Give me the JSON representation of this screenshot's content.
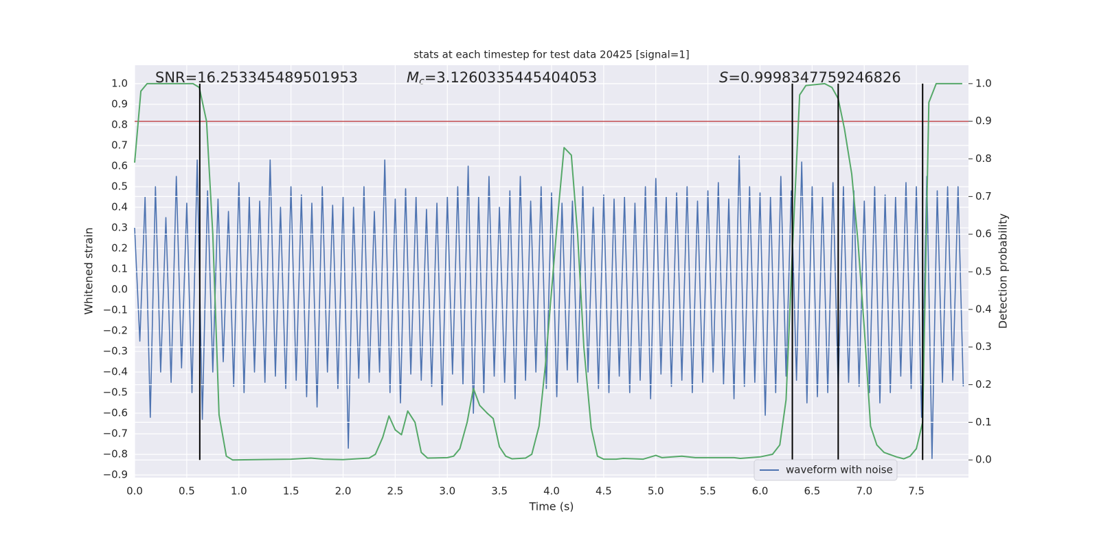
{
  "chart_data": {
    "type": "line",
    "title": "stats at each timestep for test data 20425 [signal=1]",
    "xlabel": "Time (s)",
    "ylabel": "Whitened strain",
    "y2label": "Detection probability",
    "annotations": [
      {
        "text": "SNR=16.253345489501953"
      },
      {
        "symbol": "M",
        "sub": "c",
        "text": "=3.1260335445404053"
      },
      {
        "symbol": "S",
        "text": "=0.9998347759246826"
      }
    ],
    "xlim": [
      0,
      8
    ],
    "ylim": [
      -0.913,
      1.09
    ],
    "y2lim": [
      -0.047,
      1.049
    ],
    "xticks": [
      {
        "value": 0,
        "label": "0.0"
      },
      0.5,
      {
        "value": 1,
        "label": "1.0"
      },
      1.5,
      {
        "value": 2,
        "label": "2.0"
      },
      2.5,
      {
        "value": 3,
        "label": "3.0"
      },
      3.5,
      {
        "value": 4,
        "label": "4.0"
      },
      4.5,
      {
        "value": 5,
        "label": "5.0"
      },
      5.5,
      {
        "value": 6,
        "label": "6.0"
      },
      6.5,
      {
        "value": 7,
        "label": "7.0"
      },
      7.5
    ],
    "yticks": [
      {
        "value": -0.9,
        "label": "−0.9"
      },
      {
        "value": -0.8,
        "label": "−0.8"
      },
      {
        "value": -0.7,
        "label": "−0.7"
      },
      {
        "value": -0.6,
        "label": "−0.6"
      },
      {
        "value": -0.5,
        "label": "−0.5"
      },
      {
        "value": -0.4,
        "label": "−0.4"
      },
      {
        "value": -0.3,
        "label": "−0.3"
      },
      {
        "value": -0.2,
        "label": "−0.2"
      },
      {
        "value": -0.1,
        "label": "−0.1"
      },
      {
        "value": 0,
        "label": "0.0"
      },
      0.1,
      0.2,
      0.3,
      0.4,
      0.5,
      0.6,
      0.7,
      0.8,
      0.9,
      {
        "value": 1,
        "label": "1.0"
      }
    ],
    "y2ticks": [
      {
        "value": 0,
        "label": "0.0"
      },
      0.1,
      0.2,
      0.3,
      0.4,
      0.5,
      0.6,
      0.7,
      0.8,
      0.9,
      {
        "value": 1,
        "label": "1.0"
      }
    ],
    "grid": true,
    "legend": "lower right",
    "series": [
      {
        "name": "waveform with noise",
        "color": "#4c72b0",
        "x": [
          0,
          0.05,
          0.1,
          0.15,
          0.2,
          0.25,
          0.3,
          0.35,
          0.4,
          0.45,
          0.5,
          0.55,
          0.6,
          0.65,
          0.7,
          0.75,
          0.8,
          0.85,
          0.9,
          0.95,
          1,
          1.05,
          1.1,
          1.15,
          1.2,
          1.25,
          1.3,
          1.35,
          1.4,
          1.45,
          1.5,
          1.55,
          1.6,
          1.65,
          1.7,
          1.75,
          1.8,
          1.85,
          1.9,
          1.95,
          2,
          2.05,
          2.1,
          2.15,
          2.2,
          2.25,
          2.3,
          2.35,
          2.4,
          2.45,
          2.5,
          2.55,
          2.6,
          2.65,
          2.7,
          2.75,
          2.8,
          2.85,
          2.9,
          2.95,
          3,
          3.05,
          3.1,
          3.15,
          3.2,
          3.25,
          3.3,
          3.35,
          3.4,
          3.45,
          3.5,
          3.55,
          3.6,
          3.65,
          3.7,
          3.75,
          3.8,
          3.85,
          3.9,
          3.95,
          4,
          4.05,
          4.1,
          4.15,
          4.2,
          4.25,
          4.3,
          4.35,
          4.4,
          4.45,
          4.5,
          4.55,
          4.6,
          4.65,
          4.7,
          4.75,
          4.8,
          4.85,
          4.9,
          4.95,
          5,
          5.05,
          5.1,
          5.15,
          5.2,
          5.25,
          5.3,
          5.35,
          5.4,
          5.45,
          5.5,
          5.55,
          5.6,
          5.65,
          5.7,
          5.75,
          5.8,
          5.85,
          5.9,
          5.95,
          6,
          6.05,
          6.1,
          6.15,
          6.2,
          6.25,
          6.3,
          6.35,
          6.4,
          6.45,
          6.5,
          6.55,
          6.6,
          6.65,
          6.7,
          6.75,
          6.8,
          6.85,
          6.9,
          6.95,
          7,
          7.05,
          7.1,
          7.15,
          7.2,
          7.25,
          7.3,
          7.35,
          7.4,
          7.45,
          7.5,
          7.55,
          7.6,
          7.65,
          7.7,
          7.75,
          7.8,
          7.85,
          7.9,
          7.95
        ],
        "values": [
          0.3,
          -0.25,
          0.45,
          -0.62,
          0.5,
          -0.4,
          0.35,
          -0.45,
          0.55,
          -0.38,
          0.42,
          -0.5,
          0.63,
          -0.63,
          0.48,
          -0.4,
          0.44,
          -0.35,
          0.38,
          -0.47,
          0.52,
          -0.5,
          0.45,
          -0.4,
          0.43,
          -0.45,
          0.63,
          -0.42,
          0.4,
          -0.48,
          0.5,
          -0.44,
          0.46,
          -0.52,
          0.42,
          -0.57,
          0.5,
          -0.4,
          0.41,
          -0.48,
          0.45,
          -0.77,
          0.4,
          -0.43,
          0.5,
          -0.45,
          0.38,
          -0.4,
          0.63,
          -0.5,
          0.44,
          -0.55,
          0.49,
          -0.41,
          0.45,
          -0.44,
          0.39,
          -0.47,
          0.42,
          -0.56,
          0.45,
          -0.41,
          0.5,
          -0.46,
          0.6,
          -0.6,
          0.45,
          -0.5,
          0.55,
          -0.42,
          0.4,
          -0.45,
          0.48,
          -0.53,
          0.55,
          -0.44,
          0.43,
          -0.4,
          0.5,
          -0.48,
          0.47,
          -0.52,
          0.42,
          -0.39,
          0.43,
          -0.45,
          0.5,
          -0.4,
          0.4,
          -0.48,
          0.46,
          -0.5,
          0.44,
          -0.42,
          0.45,
          -0.5,
          0.42,
          -0.44,
          0.5,
          -0.53,
          0.54,
          -0.41,
          0.45,
          -0.47,
          0.47,
          -0.44,
          0.5,
          -0.5,
          0.43,
          -0.45,
          0.48,
          -0.4,
          0.52,
          -0.46,
          0.44,
          -0.53,
          0.65,
          -0.47,
          0.5,
          -0.45,
          0.47,
          -0.61,
          0.45,
          -0.5,
          0.55,
          -0.42,
          0.48,
          -0.44,
          0.62,
          -0.55,
          0.5,
          -0.52,
          0.45,
          -0.5,
          0.52,
          -0.48,
          0.5,
          -0.45,
          0.48,
          -0.47,
          0.43,
          -0.5,
          0.5,
          -0.55,
          0.46,
          -0.5,
          0.45,
          -0.42,
          0.52,
          -0.48,
          0.5,
          -0.62,
          0.55,
          -0.82,
          0.48,
          -0.45,
          0.5,
          -0.44,
          0.5,
          -0.47
        ]
      },
      {
        "color": "#55a868",
        "axis": "y2",
        "x": [
          0,
          0.06,
          0.12,
          0.25,
          0.5,
          0.56,
          0.62,
          0.69,
          0.75,
          0.81,
          0.88,
          0.94,
          1.5,
          1.69,
          1.81,
          2,
          2.25,
          2.31,
          2.38,
          2.44,
          2.5,
          2.56,
          2.62,
          2.69,
          2.75,
          2.81,
          3,
          3.06,
          3.12,
          3.19,
          3.25,
          3.31,
          3.38,
          3.44,
          3.5,
          3.56,
          3.62,
          3.75,
          3.81,
          3.88,
          3.94,
          4,
          4.06,
          4.12,
          4.19,
          4.25,
          4.31,
          4.38,
          4.44,
          4.5,
          4.62,
          4.69,
          4.88,
          5,
          5.06,
          5.25,
          5.38,
          5.75,
          5.81,
          6,
          6.12,
          6.19,
          6.25,
          6.31,
          6.38,
          6.44,
          6.62,
          6.69,
          6.75,
          6.81,
          6.88,
          6.94,
          7,
          7.06,
          7.12,
          7.19,
          7.31,
          7.38,
          7.44,
          7.5,
          7.56,
          7.62,
          7.69,
          7.94
        ],
        "values": [
          0.79,
          0.98,
          1,
          1,
          1,
          1,
          0.99,
          0.9,
          0.6,
          0.12,
          0.01,
          0,
          0.002,
          0.005,
          0.002,
          0.001,
          0.005,
          0.015,
          0.06,
          0.117,
          0.08,
          0.067,
          0.13,
          0.1,
          0.02,
          0.005,
          0.006,
          0.01,
          0.03,
          0.1,
          0.19,
          0.145,
          0.125,
          0.11,
          0.035,
          0.01,
          0.003,
          0.005,
          0.015,
          0.09,
          0.25,
          0.45,
          0.65,
          0.83,
          0.81,
          0.6,
          0.3,
          0.085,
          0.01,
          0.002,
          0.002,
          0.004,
          0.002,
          0.012,
          0.006,
          0.01,
          0.006,
          0.006,
          0.004,
          0.008,
          0.015,
          0.04,
          0.16,
          0.55,
          0.97,
          0.995,
          1,
          0.99,
          0.96,
          0.88,
          0.76,
          0.58,
          0.35,
          0.09,
          0.04,
          0.02,
          0.008,
          0.003,
          0.01,
          0.03,
          0.1,
          0.95,
          1,
          1
        ]
      }
    ],
    "threshold": {
      "value": 0.9,
      "axis": "y2",
      "color": "#c44e52"
    },
    "markers": {
      "x": [
        0.625,
        6.31,
        6.75,
        7.56
      ],
      "color": "#000000",
      "range": [
        0,
        1
      ],
      "axis": "y2"
    }
  }
}
